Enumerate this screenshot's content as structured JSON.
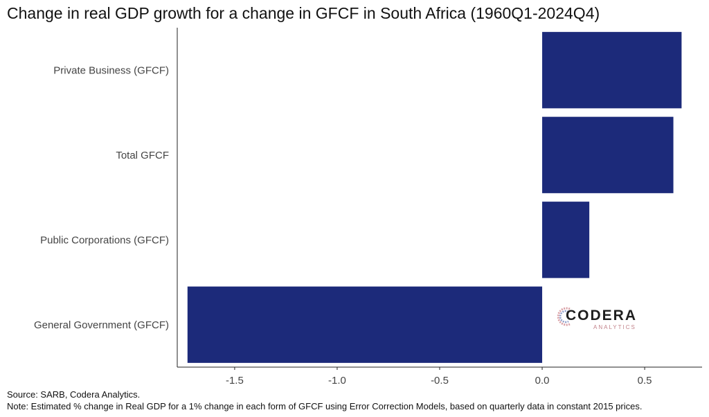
{
  "title": "Change in real GDP growth for a change in GFCF in South Africa (1960Q1-2024Q4)",
  "source": "Source: SARB, Codera Analytics.",
  "note": "Note: Estimated % change in Real GDP for a 1% change in each form of GFCF using Error Correction Models, based on quarterly data in constant 2015 prices.",
  "logo": {
    "name": "CODERA",
    "sub": "ANALYTICS"
  },
  "colors": {
    "bar": "#1c2a7a"
  },
  "chart_data": {
    "type": "bar",
    "orientation": "horizontal",
    "categories": [
      "Private Business (GFCF)",
      "Total GFCF",
      "Public Corporations (GFCF)",
      "General Government (GFCF)"
    ],
    "values": [
      0.68,
      0.64,
      0.23,
      -1.73
    ],
    "title": "Change in real GDP growth for a change in GFCF in South Africa (1960Q1-2024Q4)",
    "xlabel": "",
    "ylabel": "",
    "xlim": [
      -1.78,
      0.78
    ],
    "xticks": [
      -1.5,
      -1.0,
      -0.5,
      0.0,
      0.5
    ],
    "xtick_labels": [
      "-1.5",
      "-1.0",
      "-0.5",
      "0.0",
      "0.5"
    ],
    "grid": false,
    "legend": "none"
  }
}
